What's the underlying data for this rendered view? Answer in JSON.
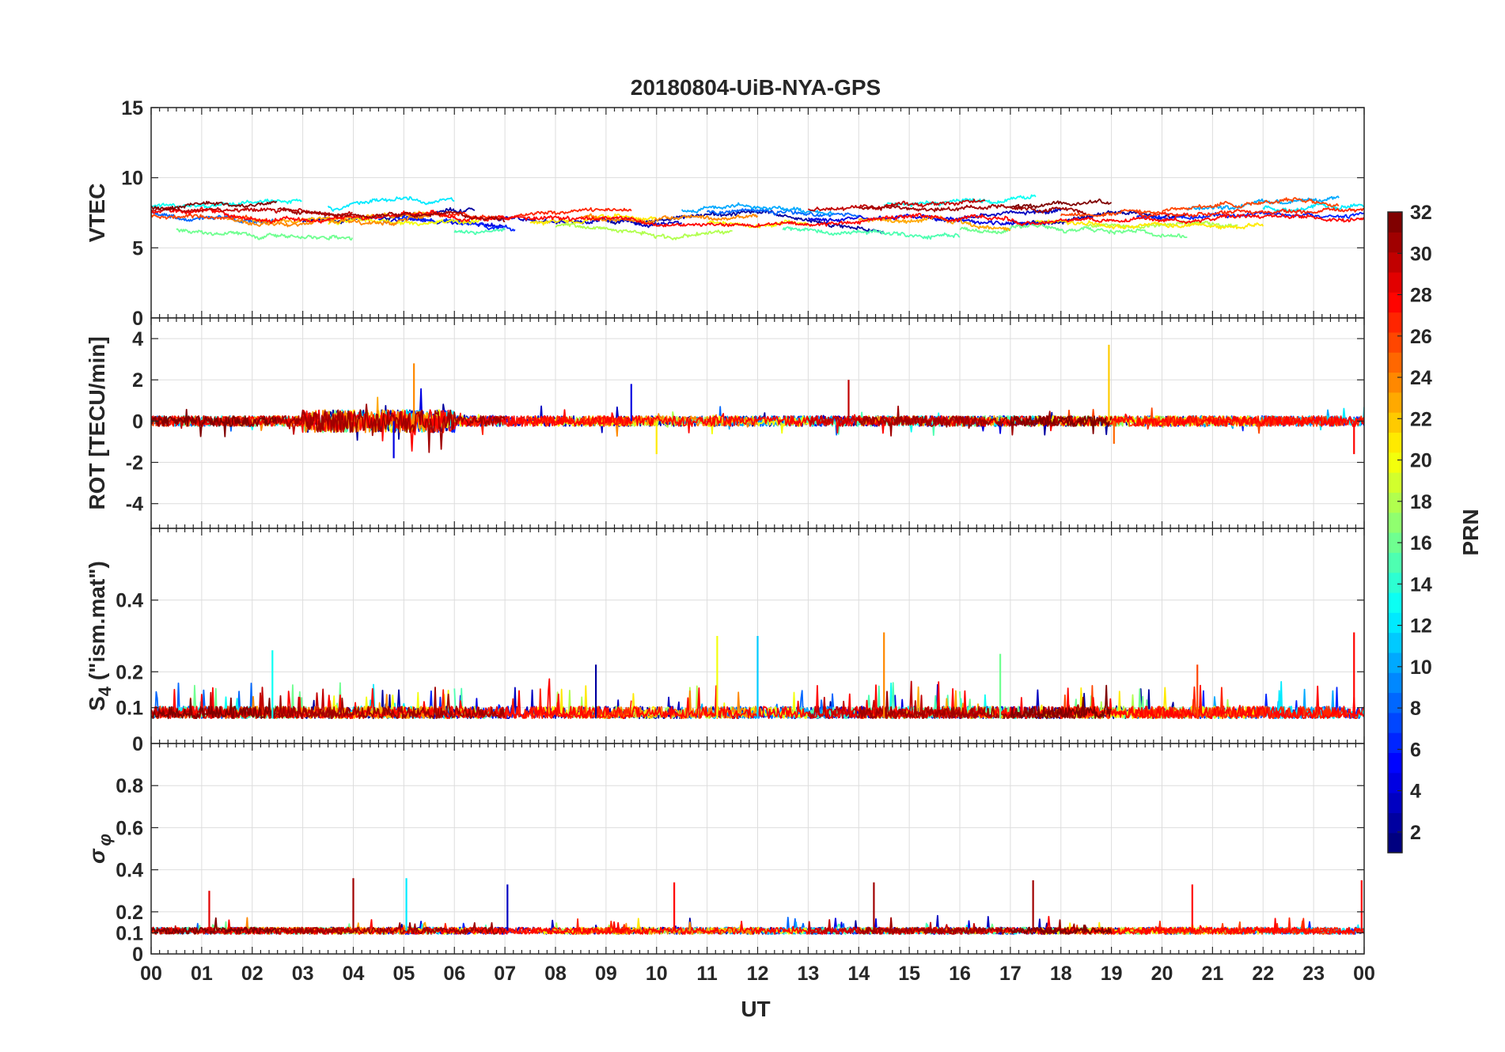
{
  "chart_data": {
    "type": "line",
    "title": "20180804-UiB-NYA-GPS",
    "xlabel": "UT",
    "x_tick_labels": [
      "00",
      "01",
      "02",
      "03",
      "04",
      "05",
      "06",
      "07",
      "08",
      "09",
      "10",
      "11",
      "12",
      "13",
      "14",
      "15",
      "16",
      "17",
      "18",
      "19",
      "20",
      "21",
      "22",
      "23",
      "00"
    ],
    "xlim": [
      0,
      24
    ],
    "grid": true,
    "panels": [
      {
        "name": "VTEC",
        "ylabel": "VTEC",
        "ylim": [
          0,
          15
        ],
        "y_ticks": [
          0,
          5,
          10,
          15
        ],
        "y_tick_labels": [
          "0",
          "5",
          "10",
          "15"
        ],
        "baseline": 7.2,
        "noise": 0.9,
        "spikes": []
      },
      {
        "name": "ROT",
        "ylabel": "ROT [TECU/min]",
        "ylim": [
          -5.2,
          5
        ],
        "y_ticks": [
          -4,
          -2,
          0,
          2,
          4
        ],
        "y_tick_labels": [
          "-4",
          "-2",
          "0",
          "2",
          "4"
        ],
        "baseline": 0,
        "noise": 0.25,
        "spikes": [
          {
            "x": 5.2,
            "y": 2.8,
            "prn": 24
          },
          {
            "x": 4.8,
            "y": -1.8,
            "prn": 4
          },
          {
            "x": 9.5,
            "y": 1.8,
            "prn": 4
          },
          {
            "x": 10.0,
            "y": -1.6,
            "prn": 21
          },
          {
            "x": 13.8,
            "y": 2.0,
            "prn": 30
          },
          {
            "x": 18.95,
            "y": 3.7,
            "prn": 22
          },
          {
            "x": 19.05,
            "y": -1.1,
            "prn": 25
          },
          {
            "x": 23.8,
            "y": -1.6,
            "prn": 28
          }
        ]
      },
      {
        "name": "S4",
        "ylabel": "S4 (\"ism.mat\")",
        "ylim": [
          0,
          0.6
        ],
        "y_ticks": [
          0,
          0.1,
          0.2,
          0.4
        ],
        "y_tick_labels": [
          "0",
          "0.1",
          "0.2",
          "0.4"
        ],
        "baseline": 0.07,
        "noise": 0.03,
        "spikes": [
          {
            "x": 11.2,
            "y": 0.3,
            "prn": 20
          },
          {
            "x": 12.0,
            "y": 0.3,
            "prn": 11
          },
          {
            "x": 14.5,
            "y": 0.31,
            "prn": 24
          },
          {
            "x": 16.8,
            "y": 0.25,
            "prn": 16
          },
          {
            "x": 23.8,
            "y": 0.31,
            "prn": 28
          },
          {
            "x": 2.4,
            "y": 0.26,
            "prn": 13
          },
          {
            "x": 8.8,
            "y": 0.22,
            "prn": 2
          },
          {
            "x": 20.7,
            "y": 0.22,
            "prn": 26
          }
        ]
      },
      {
        "name": "SigmaPhi",
        "ylabel": "σ φ",
        "ylim": [
          0,
          1
        ],
        "y_ticks": [
          0,
          0.1,
          0.2,
          0.4,
          0.6,
          0.8
        ],
        "y_tick_labels": [
          "0",
          "0.1",
          "0.2",
          "0.4",
          "0.6",
          "0.8"
        ],
        "baseline": 0.11,
        "noise": 0.02,
        "spikes": [
          {
            "x": 1.15,
            "y": 0.3,
            "prn": 29
          },
          {
            "x": 4.0,
            "y": 0.36,
            "prn": 31
          },
          {
            "x": 5.05,
            "y": 0.36,
            "prn": 12
          },
          {
            "x": 7.05,
            "y": 0.33,
            "prn": 3
          },
          {
            "x": 10.35,
            "y": 0.34,
            "prn": 28
          },
          {
            "x": 14.3,
            "y": 0.34,
            "prn": 31
          },
          {
            "x": 17.45,
            "y": 0.35,
            "prn": 31
          },
          {
            "x": 20.6,
            "y": 0.33,
            "prn": 28
          },
          {
            "x": 23.95,
            "y": 0.35,
            "prn": 28
          }
        ]
      }
    ],
    "colorbar": {
      "label": "PRN",
      "range": [
        1,
        32
      ],
      "tick_labels": [
        "2",
        "4",
        "6",
        "8",
        "10",
        "12",
        "14",
        "16",
        "18",
        "20",
        "22",
        "24",
        "26",
        "28",
        "30",
        "32"
      ],
      "colormap": "jet"
    },
    "series": [
      {
        "prn": 2,
        "passes": [
          [
            3.0,
            6.4
          ],
          [
            9.0,
            14.5
          ],
          [
            17.0,
            20.5
          ]
        ]
      },
      {
        "prn": 3,
        "passes": [
          [
            6.8,
            10.5
          ],
          [
            15.5,
            18.0
          ]
        ]
      },
      {
        "prn": 4,
        "passes": [
          [
            4.5,
            7.0
          ],
          [
            13.0,
            17.8
          ]
        ]
      },
      {
        "prn": 6,
        "passes": [
          [
            4.8,
            7.2
          ],
          [
            19.5,
            24.0
          ]
        ]
      },
      {
        "prn": 8,
        "passes": [
          [
            0.0,
            2.5
          ],
          [
            11.0,
            14.0
          ]
        ]
      },
      {
        "prn": 10,
        "passes": [
          [
            10.5,
            13.5
          ],
          [
            20.5,
            23.5
          ]
        ]
      },
      {
        "prn": 12,
        "passes": [
          [
            3.5,
            6.0
          ],
          [
            22.0,
            24.0
          ]
        ]
      },
      {
        "prn": 13,
        "passes": [
          [
            0.0,
            3.0
          ],
          [
            14.5,
            17.5
          ]
        ]
      },
      {
        "prn": 15,
        "passes": [
          [
            6.0,
            7.0
          ],
          [
            12.5,
            16.0
          ]
        ]
      },
      {
        "prn": 16,
        "passes": [
          [
            0.5,
            4.0
          ],
          [
            16.0,
            20.5
          ]
        ]
      },
      {
        "prn": 18,
        "passes": [
          [
            8.0,
            11.5
          ],
          [
            18.5,
            21.5
          ]
        ]
      },
      {
        "prn": 20,
        "passes": [
          [
            3.5,
            6.5
          ],
          [
            11.0,
            13.0
          ]
        ]
      },
      {
        "prn": 21,
        "passes": [
          [
            7.5,
            10.0
          ],
          [
            17.5,
            22.0
          ]
        ]
      },
      {
        "prn": 23,
        "passes": [
          [
            2.0,
            5.5
          ],
          [
            14.0,
            17.0
          ]
        ]
      },
      {
        "prn": 24,
        "passes": [
          [
            1.5,
            5.5
          ],
          [
            8.5,
            12.0
          ]
        ]
      },
      {
        "prn": 26,
        "passes": [
          [
            0.0,
            2.0
          ],
          [
            18.0,
            23.5
          ]
        ]
      },
      {
        "prn": 27,
        "passes": [
          [
            5.5,
            9.5
          ],
          [
            19.5,
            24.0
          ]
        ]
      },
      {
        "prn": 28,
        "passes": [
          [
            0.0,
            24.0
          ]
        ]
      },
      {
        "prn": 30,
        "passes": [
          [
            0.0,
            4.0
          ],
          [
            13.0,
            16.5
          ]
        ]
      },
      {
        "prn": 31,
        "passes": [
          [
            2.5,
            7.0
          ],
          [
            14.0,
            18.5
          ]
        ]
      },
      {
        "prn": 32,
        "passes": [
          [
            0.0,
            2.5
          ],
          [
            17.0,
            19.0
          ]
        ]
      }
    ]
  }
}
